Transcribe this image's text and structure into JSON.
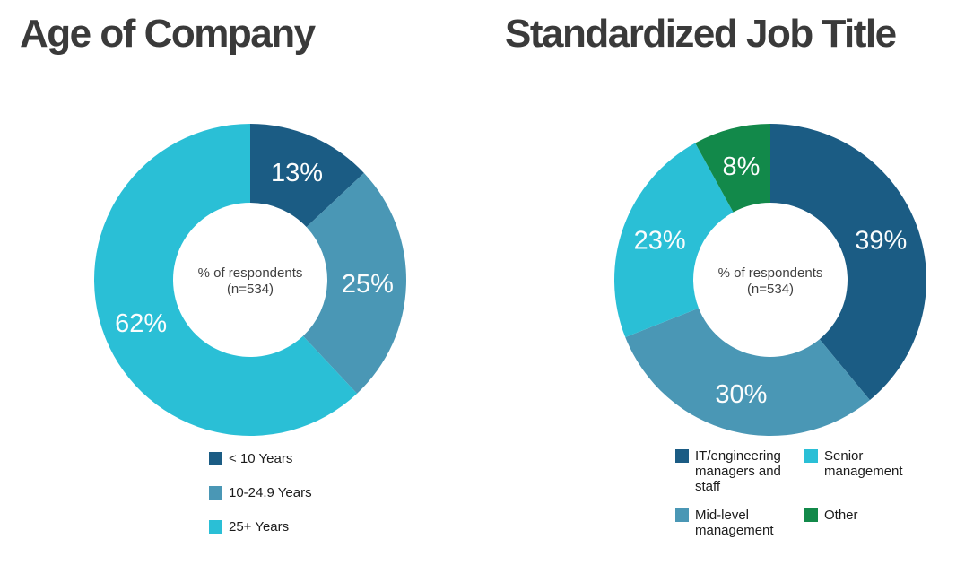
{
  "chart_data": [
    {
      "type": "pie",
      "subtype": "donut",
      "title": "Age of Company",
      "center_label": [
        "% of respondents",
        "(n=534)"
      ],
      "categories": [
        "< 10 Years",
        "10-24.9 Years",
        "25+ Years"
      ],
      "values": [
        13,
        25,
        62
      ],
      "slice_labels": [
        "13%",
        "25%",
        "62%"
      ],
      "colors": [
        "#1b5c84",
        "#4a97b5",
        "#2abfd6"
      ],
      "start_angle_deg": 0,
      "direction": "clockwise",
      "inner_radius_ratio": 0.494,
      "legend_position": "bottom",
      "legend_columns": 1,
      "legend_items": [
        {
          "label": "< 10 Years",
          "color": "#1b5c84"
        },
        {
          "label": "10-24.9 Years",
          "color": "#4a97b5"
        },
        {
          "label": "25+ Years",
          "color": "#2abfd6"
        }
      ]
    },
    {
      "type": "pie",
      "subtype": "donut",
      "title": "Standardized Job Title",
      "center_label": [
        "% of respondents",
        "(n=534)"
      ],
      "categories": [
        "IT/engineering managers and staff",
        "Mid-level management",
        "Senior management",
        "Other"
      ],
      "values": [
        39,
        30,
        23,
        8
      ],
      "slice_labels": [
        "39%",
        "30%",
        "23%",
        "8%"
      ],
      "colors": [
        "#1b5c84",
        "#4a97b5",
        "#2abfd6",
        "#12894a"
      ],
      "start_angle_deg": 0,
      "direction": "clockwise",
      "inner_radius_ratio": 0.494,
      "legend_position": "bottom",
      "legend_columns": 2,
      "legend_items": [
        {
          "label": "IT/engineering managers and staff",
          "color": "#1b5c84"
        },
        {
          "label": "Senior management",
          "color": "#2abfd6"
        },
        {
          "label": "Mid-level management",
          "color": "#4a97b5"
        },
        {
          "label": "Other",
          "color": "#12894a"
        }
      ]
    }
  ]
}
